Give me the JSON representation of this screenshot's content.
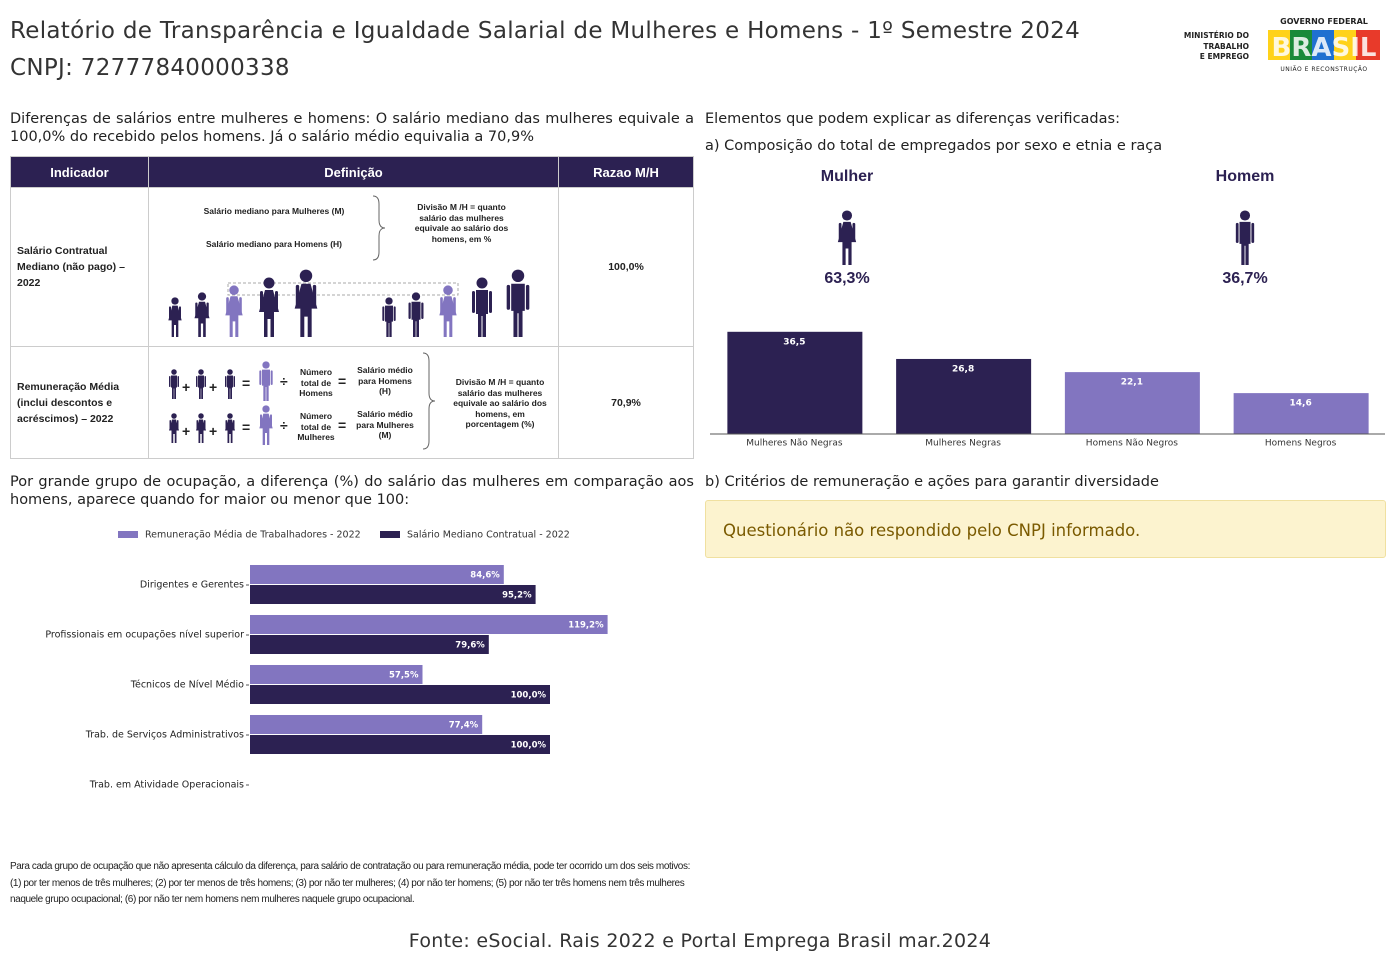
{
  "header": {
    "title": "Relatório de Transparência e Igualdade Salarial de Mulheres e Homens - 1º Semestre 2024",
    "cnpj": "CNPJ: 72777840000338",
    "ministry": [
      "MINISTÉRIO DO",
      "TRABALHO",
      "E EMPREGO"
    ],
    "gov": "GOVERNO FEDERAL",
    "brasil": "BRASIL",
    "tagline": "UNIÃO E RECONSTRUÇÃO"
  },
  "left": {
    "intro": "Diferenças de salários entre mulheres e homens: O salário mediano das mulheres equivale a 100,0% do recebido pelos homens. Já o salário médio equivalia a 70,9%",
    "table": {
      "headers": [
        "Indicador",
        "Definição",
        "Razao M/H"
      ],
      "rows": [
        {
          "indicator": "Salário Contratual Mediano (não pago) – 2022",
          "texts": [
            "Salário mediano para Mulheres (M)",
            "Salário mediano para Homens (H)",
            "Divisão M /H = quanto salário das mulheres equivale ao salário dos homens, em %"
          ],
          "ratio": "100,0%"
        },
        {
          "indicator": "Remuneração Média (inclui descontos e acréscimos) – 2022",
          "texts": [
            "Número total de Homens",
            "Salário médio para Homens (H)",
            "Número total de Mulheres",
            "Salário médio para Mulheres (M)",
            "Divisão M /H = quanto salário das mulheres equivale ao salário dos homens, em porcentagem (%)"
          ],
          "ratio": "70,9%"
        }
      ],
      "symbols": {
        "plus": "+",
        "divide": "÷",
        "equals": "="
      }
    },
    "group_text": "Por grande grupo de ocupação, a diferença (%) do salário das mulheres em comparação aos homens, aparece quando for maior ou menor que 100:",
    "footnote": "Para cada grupo de ocupação que não apresenta cálculo da diferença, para salário de contratação ou para remuneração média, pode ter ocorrido um dos seis motivos:(1) por ter menos de três mulheres; (2) por ter menos de três homens; (3) por não ter mulheres; (4) por não ter homens; (5) por não ter três homens nem três mulheres naquele grupo ocupacional; (6) por não ter nem homens nem mulheres naquele grupo ocupacional."
  },
  "right": {
    "heading": "Elementos que podem explicar as diferenças verificadas:",
    "sub_a": "a) Composição do total de empregados por sexo e etnia e raça",
    "women": {
      "label": "Mulher",
      "share": "63,3%"
    },
    "men": {
      "label": "Homem",
      "share": "36,7%"
    },
    "sub_b": "b) Critérios de remuneração e ações para garantir diversidade",
    "notice": "Questionário não respondido pelo CNPJ informado."
  },
  "chart_data": [
    {
      "type": "barh",
      "categories": [
        "Dirigentes e Gerentes",
        "Profissionais em ocupações nível superior",
        "Técnicos de Nível Médio",
        "Trab. de Serviços Administrativos",
        "Trab. em Atividade Operacionais"
      ],
      "series": [
        {
          "name": "Remuneração Média de Trabalhadores - 2022",
          "color": "#8275c0",
          "values": [
            84.6,
            119.2,
            57.5,
            77.4,
            null
          ],
          "value_labels": [
            "84,6%",
            "119,2%",
            "57,5%",
            "77,4%",
            null
          ]
        },
        {
          "name": "Salário Mediano Contratual - 2022",
          "color": "#2c2152",
          "values": [
            95.2,
            79.6,
            100.0,
            100.0,
            null
          ],
          "value_labels": [
            "95,2%",
            "79,6%",
            "100,0%",
            "100,0%",
            null
          ]
        }
      ],
      "xlim": [
        0,
        130
      ]
    },
    {
      "type": "bar",
      "categories": [
        "Mulheres Não Negras",
        "Mulheres Negras",
        "Homens Não Negros",
        "Homens Negros"
      ],
      "values": [
        36.5,
        26.8,
        22.1,
        14.6
      ],
      "value_labels": [
        "36,5",
        "26,8",
        "22,1",
        "14,6"
      ],
      "colors": [
        "#2c2152",
        "#2c2152",
        "#8275c0",
        "#8275c0"
      ],
      "ylim": [
        0,
        40
      ]
    }
  ],
  "source": "Fonte: eSocial. Rais 2022 e Portal Emprega Brasil mar.2024"
}
